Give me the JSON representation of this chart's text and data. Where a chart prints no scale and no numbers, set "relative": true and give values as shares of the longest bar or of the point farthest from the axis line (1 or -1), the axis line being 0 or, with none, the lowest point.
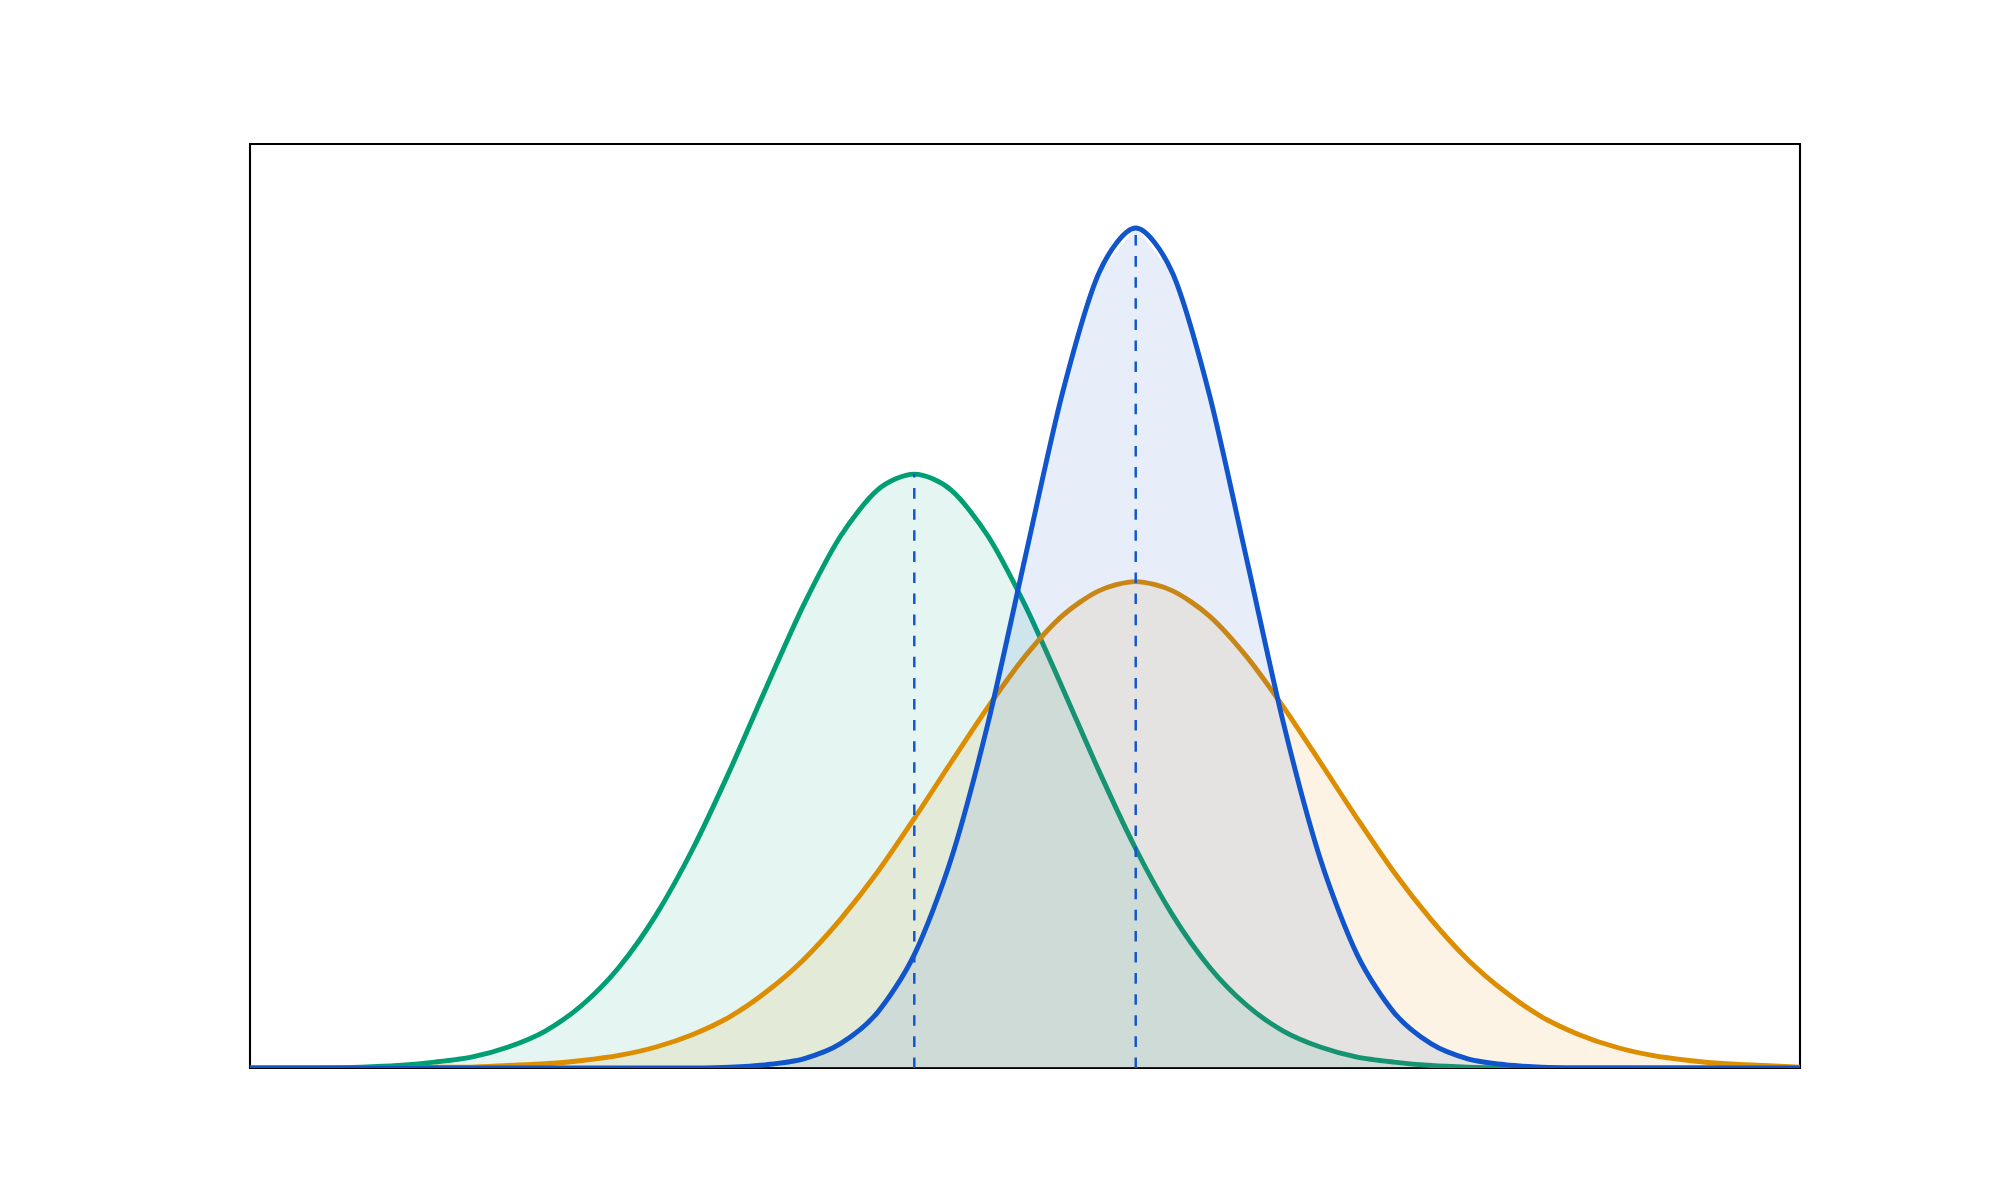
{
  "chart_data": {
    "type": "area",
    "relative": true,
    "categories": [
      null,
      null,
      null,
      null,
      null,
      null,
      null,
      null,
      null,
      null,
      null,
      null,
      null,
      null,
      null,
      null,
      null,
      null,
      null,
      null,
      null,
      null,
      null,
      null,
      null,
      null,
      null,
      null,
      null,
      null,
      null,
      null,
      null,
      null,
      null,
      null,
      null,
      null,
      null,
      null,
      null,
      null,
      null
    ],
    "series": [
      {
        "color": "#009e73",
        "values": [
          0,
          0,
          0,
          0.001,
          0.003,
          0.007,
          0.013,
          0.025,
          0.044,
          0.075,
          0.12,
          0.182,
          0.261,
          0.354,
          0.454,
          0.551,
          0.633,
          0.688,
          0.707,
          0.688,
          0.633,
          0.551,
          0.454,
          0.354,
          0.261,
          0.182,
          0.12,
          0.075,
          0.044,
          0.025,
          0.013,
          0.007,
          0.003,
          0.001,
          0,
          0,
          0,
          0,
          0,
          0,
          0,
          0,
          0
        ]
      },
      {
        "color": "#dd8d00",
        "values": [
          0,
          0,
          0,
          0,
          0,
          0.001,
          0.001,
          0.003,
          0.005,
          0.009,
          0.015,
          0.025,
          0.04,
          0.061,
          0.091,
          0.129,
          0.177,
          0.233,
          0.297,
          0.364,
          0.43,
          0.49,
          0.538,
          0.568,
          0.579,
          0.568,
          0.538,
          0.49,
          0.43,
          0.364,
          0.297,
          0.233,
          0.177,
          0.129,
          0.091,
          0.061,
          0.04,
          0.025,
          0.015,
          0.009,
          0.005,
          0.003,
          0.001
        ]
      },
      {
        "color": "#1155cc",
        "values": [
          0,
          0,
          0,
          0,
          0,
          0,
          0,
          0,
          0,
          0,
          0,
          0,
          0,
          0.001,
          0.004,
          0.011,
          0.029,
          0.066,
          0.135,
          0.249,
          0.411,
          0.607,
          0.801,
          0.946,
          1,
          0.946,
          0.801,
          0.607,
          0.411,
          0.249,
          0.135,
          0.066,
          0.029,
          0.011,
          0.004,
          0.001,
          0,
          0,
          0,
          0,
          0,
          0,
          0
        ]
      }
    ]
  }
}
